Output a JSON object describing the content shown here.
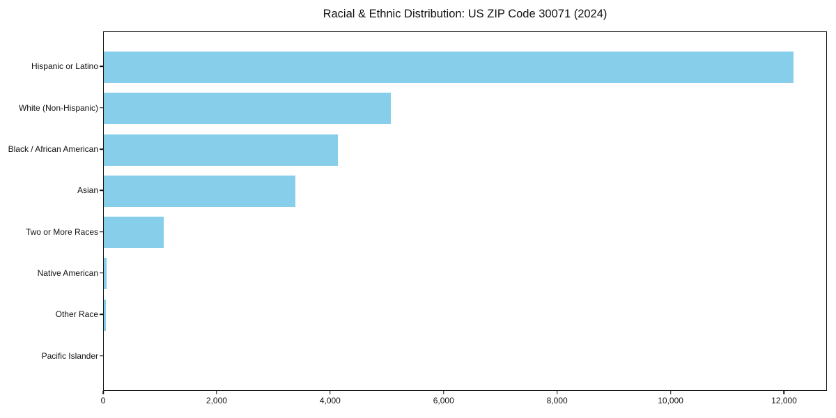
{
  "chart_data": {
    "type": "bar",
    "orientation": "horizontal",
    "title": "Racial & Ethnic Distribution: US ZIP Code 30071 (2024)",
    "categories": [
      "Hispanic or Latino",
      "White (Non-Hispanic)",
      "Black / African American",
      "Asian",
      "Two or More Races",
      "Native American",
      "Other Race",
      "Pacific Islander"
    ],
    "values": [
      12150,
      5060,
      4120,
      3370,
      1050,
      50,
      35,
      0
    ],
    "xlabel": "",
    "ylabel": "",
    "xlim": [
      0,
      12755
    ],
    "x_ticks": [
      0,
      2000,
      4000,
      6000,
      8000,
      10000,
      12000
    ],
    "x_tick_labels": [
      "0",
      "2,000",
      "4,000",
      "6,000",
      "8,000",
      "10,000",
      "12,000"
    ],
    "bar_color": "#87CEEB",
    "axis_color": "#141414",
    "background_color": "#ffffff",
    "grid": false,
    "legend": null
  }
}
